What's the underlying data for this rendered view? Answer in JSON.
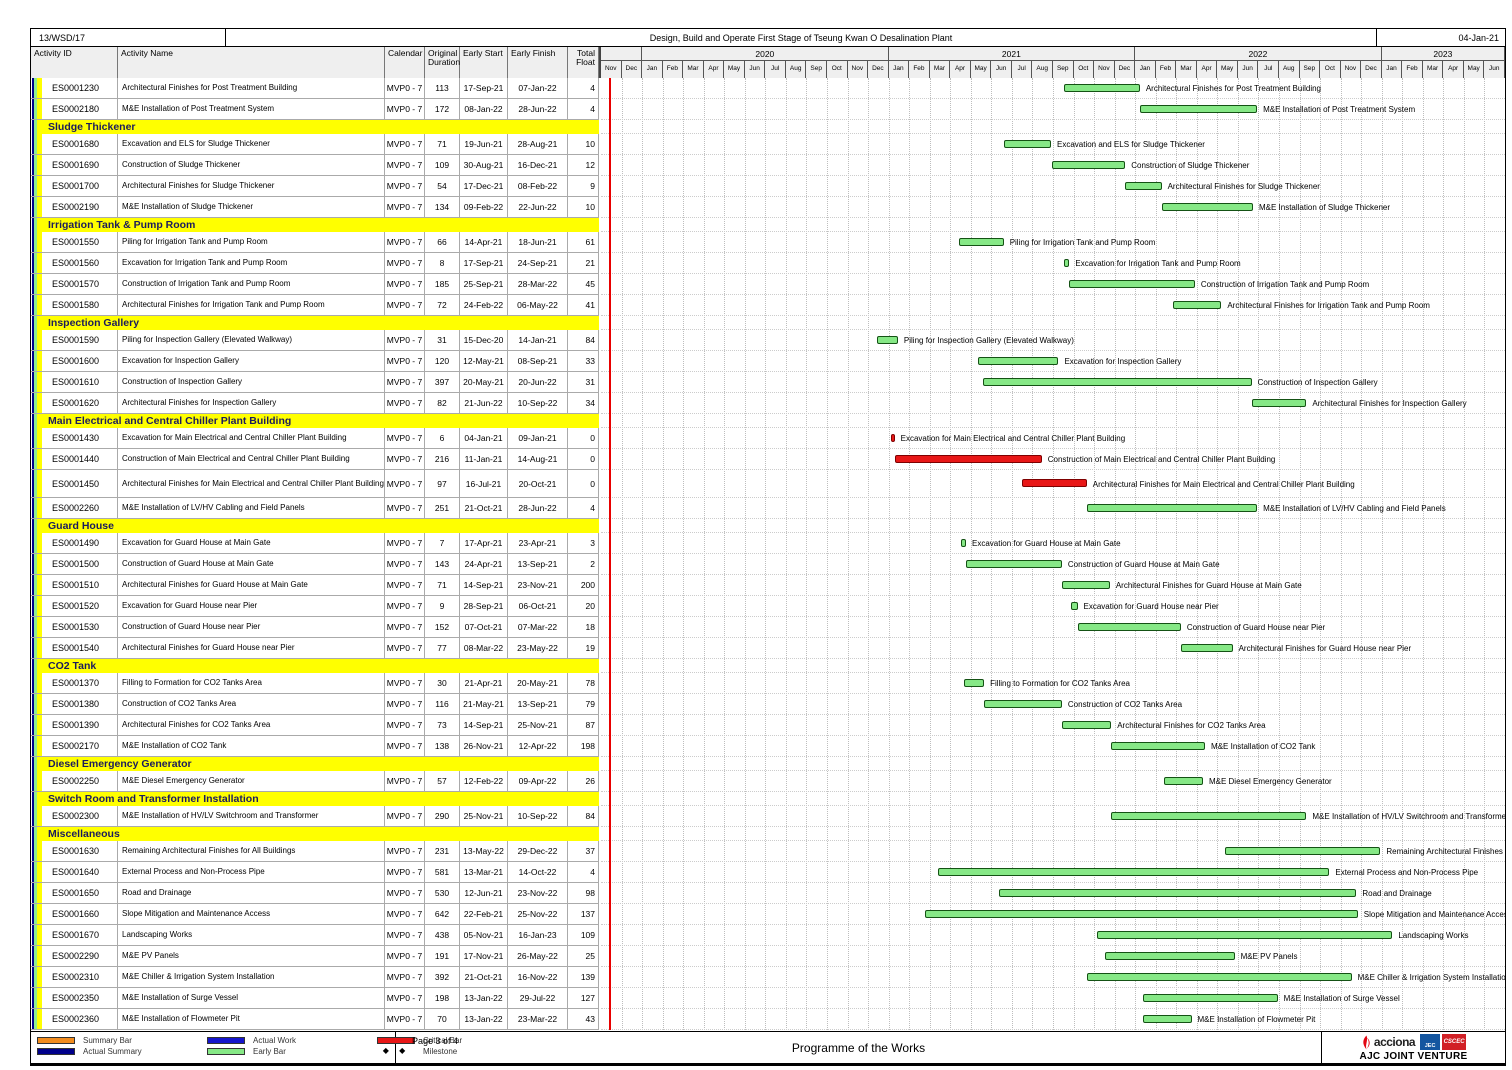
{
  "header": {
    "contract_no": "13/WSD/17",
    "title": "Design, Build and Operate First Stage of Tseung Kwan O Desalination Plant",
    "date": "04-Jan-21"
  },
  "columns": {
    "activity_id": "Activity ID",
    "activity_name": "Activity Name",
    "calendar": "Calendar",
    "original_duration": "Original Duration",
    "early_start": "Early Start",
    "early_finish": "Early Finish",
    "total_float": "Total Float"
  },
  "colors": {
    "early_fill": "#86E886",
    "early_border": "#145214",
    "critical_fill": "#E81717",
    "critical_border": "#7E0000",
    "data_date_line": "#E80000",
    "section_bg": "#FFFF00",
    "summary_bar": "#F28C1E",
    "actual_summary": "#00008B",
    "actual_work": "#1515CC"
  },
  "chart_data": {
    "type": "gantt",
    "timeline": {
      "first_month": "Nov",
      "first_year": 2019,
      "total_months": 44,
      "month_abbrs": [
        "Jan",
        "Feb",
        "Mar",
        "Apr",
        "May",
        "Jun",
        "Jul",
        "Aug",
        "Sep",
        "Oct",
        "Nov",
        "Dec"
      ],
      "year_bands": [
        {
          "label": "",
          "span": 2
        },
        {
          "label": "2020",
          "span": 12
        },
        {
          "label": "2021",
          "span": 12
        },
        {
          "label": "2022",
          "span": 12
        },
        {
          "label": "2023",
          "span": 6
        }
      ],
      "data_date_x_month": 0.4
    },
    "tasks": [
      {
        "type": "task",
        "id": "ES0001230",
        "name": "Architectural Finishes for Post Treatment Building",
        "calendar": "MVP0 - 7",
        "duration": "113",
        "start": "17-Sep-21",
        "finish": "07-Jan-22",
        "float": "4"
      },
      {
        "type": "task",
        "id": "ES0002180",
        "name": "M&E Installation of Post Treatment System",
        "calendar": "MVP0 - 7",
        "duration": "172",
        "start": "08-Jan-22",
        "finish": "28-Jun-22",
        "float": "4"
      },
      {
        "type": "section",
        "name": "Sludge Thickener"
      },
      {
        "type": "task",
        "id": "ES0001680",
        "name": "Excavation and ELS for Sludge Thickener",
        "calendar": "MVP0 - 7",
        "duration": "71",
        "start": "19-Jun-21",
        "finish": "28-Aug-21",
        "float": "10"
      },
      {
        "type": "task",
        "id": "ES0001690",
        "name": "Construction of Sludge Thickener",
        "calendar": "MVP0 - 7",
        "duration": "109",
        "start": "30-Aug-21",
        "finish": "16-Dec-21",
        "float": "12"
      },
      {
        "type": "task",
        "id": "ES0001700",
        "name": "Architectural Finishes for Sludge Thickener",
        "calendar": "MVP0 - 7",
        "duration": "54",
        "start": "17-Dec-21",
        "finish": "08-Feb-22",
        "float": "9"
      },
      {
        "type": "task",
        "id": "ES0002190",
        "name": "M&E Installation of Sludge Thickener",
        "calendar": "MVP0 - 7",
        "duration": "134",
        "start": "09-Feb-22",
        "finish": "22-Jun-22",
        "float": "10"
      },
      {
        "type": "section",
        "name": "Irrigation Tank & Pump Room"
      },
      {
        "type": "task",
        "id": "ES0001550",
        "name": "Piling for Irrigation Tank and Pump Room",
        "calendar": "MVP0 - 7",
        "duration": "66",
        "start": "14-Apr-21",
        "finish": "18-Jun-21",
        "float": "61"
      },
      {
        "type": "task",
        "id": "ES0001560",
        "name": "Excavation for Irrigation Tank and Pump Room",
        "calendar": "MVP0 - 7",
        "duration": "8",
        "start": "17-Sep-21",
        "finish": "24-Sep-21",
        "float": "21"
      },
      {
        "type": "task",
        "id": "ES0001570",
        "name": "Construction of Irrigation Tank and Pump Room",
        "calendar": "MVP0 - 7",
        "duration": "185",
        "start": "25-Sep-21",
        "finish": "28-Mar-22",
        "float": "45"
      },
      {
        "type": "task",
        "id": "ES0001580",
        "name": "Architectural Finishes for Irrigation Tank and Pump Room",
        "calendar": "MVP0 - 7",
        "duration": "72",
        "start": "24-Feb-22",
        "finish": "06-May-22",
        "float": "41"
      },
      {
        "type": "section",
        "name": "Inspection Gallery"
      },
      {
        "type": "task",
        "id": "ES0001590",
        "name": "Piling for Inspection Gallery (Elevated Walkway)",
        "calendar": "MVP0 - 7",
        "duration": "31",
        "start": "15-Dec-20",
        "finish": "14-Jan-21",
        "float": "84"
      },
      {
        "type": "task",
        "id": "ES0001600",
        "name": "Excavation for Inspection Gallery",
        "calendar": "MVP0 - 7",
        "duration": "120",
        "start": "12-May-21",
        "finish": "08-Sep-21",
        "float": "33"
      },
      {
        "type": "task",
        "id": "ES0001610",
        "name": "Construction of Inspection Gallery",
        "calendar": "MVP0 - 7",
        "duration": "397",
        "start": "20-May-21",
        "finish": "20-Jun-22",
        "float": "31"
      },
      {
        "type": "task",
        "id": "ES0001620",
        "name": "Architectural Finishes for Inspection Gallery",
        "calendar": "MVP0 - 7",
        "duration": "82",
        "start": "21-Jun-22",
        "finish": "10-Sep-22",
        "float": "34"
      },
      {
        "type": "section",
        "name": "Main Electrical and Central Chiller Plant Building"
      },
      {
        "type": "task",
        "id": "ES0001430",
        "name": "Excavation for Main Electrical and Central Chiller Plant Building",
        "calendar": "MVP0 - 7",
        "duration": "6",
        "start": "04-Jan-21",
        "finish": "09-Jan-21",
        "float": "0",
        "critical": true
      },
      {
        "type": "task",
        "id": "ES0001440",
        "name": "Construction of Main Electrical and Central Chiller Plant Building",
        "calendar": "MVP0 - 7",
        "duration": "216",
        "start": "11-Jan-21",
        "finish": "14-Aug-21",
        "float": "0",
        "critical": true
      },
      {
        "type": "task",
        "id": "ES0001450",
        "name": "Architectural Finishes for Main Electrical and Central Chiller Plant Building",
        "calendar": "MVP0 - 7",
        "duration": "97",
        "start": "16-Jul-21",
        "finish": "20-Oct-21",
        "float": "0",
        "critical": true,
        "tall": true
      },
      {
        "type": "task",
        "id": "ES0002260",
        "name": "M&E Installation of LV/HV Cabling and Field Panels",
        "calendar": "MVP0 - 7",
        "duration": "251",
        "start": "21-Oct-21",
        "finish": "28-Jun-22",
        "float": "4"
      },
      {
        "type": "section",
        "name": "Guard House"
      },
      {
        "type": "task",
        "id": "ES0001490",
        "name": "Excavation for Guard House at Main Gate",
        "calendar": "MVP0 - 7",
        "duration": "7",
        "start": "17-Apr-21",
        "finish": "23-Apr-21",
        "float": "3"
      },
      {
        "type": "task",
        "id": "ES0001500",
        "name": "Construction of Guard House at Main Gate",
        "calendar": "MVP0 - 7",
        "duration": "143",
        "start": "24-Apr-21",
        "finish": "13-Sep-21",
        "float": "2"
      },
      {
        "type": "task",
        "id": "ES0001510",
        "name": "Architectural Finishes for Guard House at Main Gate",
        "calendar": "MVP0 - 7",
        "duration": "71",
        "start": "14-Sep-21",
        "finish": "23-Nov-21",
        "float": "200"
      },
      {
        "type": "task",
        "id": "ES0001520",
        "name": "Excavation for Guard House near Pier",
        "calendar": "MVP0 - 7",
        "duration": "9",
        "start": "28-Sep-21",
        "finish": "06-Oct-21",
        "float": "20"
      },
      {
        "type": "task",
        "id": "ES0001530",
        "name": "Construction of Guard House near Pier",
        "calendar": "MVP0 - 7",
        "duration": "152",
        "start": "07-Oct-21",
        "finish": "07-Mar-22",
        "float": "18"
      },
      {
        "type": "task",
        "id": "ES0001540",
        "name": "Architectural Finishes for Guard House near Pier",
        "calendar": "MVP0 - 7",
        "duration": "77",
        "start": "08-Mar-22",
        "finish": "23-May-22",
        "float": "19"
      },
      {
        "type": "section",
        "name": "CO2 Tank"
      },
      {
        "type": "task",
        "id": "ES0001370",
        "name": "Filling to Formation for CO2 Tanks Area",
        "calendar": "MVP0 - 7",
        "duration": "30",
        "start": "21-Apr-21",
        "finish": "20-May-21",
        "float": "78"
      },
      {
        "type": "task",
        "id": "ES0001380",
        "name": "Construction of CO2 Tanks Area",
        "calendar": "MVP0 - 7",
        "duration": "116",
        "start": "21-May-21",
        "finish": "13-Sep-21",
        "float": "79"
      },
      {
        "type": "task",
        "id": "ES0001390",
        "name": "Architectural Finishes for CO2 Tanks Area",
        "calendar": "MVP0 - 7",
        "duration": "73",
        "start": "14-Sep-21",
        "finish": "25-Nov-21",
        "float": "87"
      },
      {
        "type": "task",
        "id": "ES0002170",
        "name": "M&E Installation of CO2 Tank",
        "calendar": "MVP0 - 7",
        "duration": "138",
        "start": "26-Nov-21",
        "finish": "12-Apr-22",
        "float": "198"
      },
      {
        "type": "section",
        "name": "Diesel Emergency Generator"
      },
      {
        "type": "task",
        "id": "ES0002250",
        "name": "M&E Diesel Emergency Generator",
        "calendar": "MVP0 - 7",
        "duration": "57",
        "start": "12-Feb-22",
        "finish": "09-Apr-22",
        "float": "26"
      },
      {
        "type": "section",
        "name": "Switch Room and Transformer Installation"
      },
      {
        "type": "task",
        "id": "ES0002300",
        "name": "M&E Installation of HV/LV Switchroom and Transformer",
        "calendar": "MVP0 - 7",
        "duration": "290",
        "start": "25-Nov-21",
        "finish": "10-Sep-22",
        "float": "84"
      },
      {
        "type": "section",
        "name": "Miscellaneous"
      },
      {
        "type": "task",
        "id": "ES0001630",
        "name": "Remaining Architectural Finishes for All Buildings",
        "calendar": "MVP0 - 7",
        "duration": "231",
        "start": "13-May-22",
        "finish": "29-Dec-22",
        "float": "37"
      },
      {
        "type": "task",
        "id": "ES0001640",
        "name": "External Process and Non-Process Pipe",
        "calendar": "MVP0 - 7",
        "duration": "581",
        "start": "13-Mar-21",
        "finish": "14-Oct-22",
        "float": "4"
      },
      {
        "type": "task",
        "id": "ES0001650",
        "name": "Road and Drainage",
        "calendar": "MVP0 - 7",
        "duration": "530",
        "start": "12-Jun-21",
        "finish": "23-Nov-22",
        "float": "98"
      },
      {
        "type": "task",
        "id": "ES0001660",
        "name": "Slope Mitigation and Maintenance Access",
        "calendar": "MVP0 - 7",
        "duration": "642",
        "start": "22-Feb-21",
        "finish": "25-Nov-22",
        "float": "137"
      },
      {
        "type": "task",
        "id": "ES0001670",
        "name": "Landscaping Works",
        "calendar": "MVP0 - 7",
        "duration": "438",
        "start": "05-Nov-21",
        "finish": "16-Jan-23",
        "float": "109"
      },
      {
        "type": "task",
        "id": "ES0002290",
        "name": "M&E PV Panels",
        "calendar": "MVP0 - 7",
        "duration": "191",
        "start": "17-Nov-21",
        "finish": "26-May-22",
        "float": "25"
      },
      {
        "type": "task",
        "id": "ES0002310",
        "name": "M&E Chiller & Irrigation System Installation",
        "calendar": "MVP0 - 7",
        "duration": "392",
        "start": "21-Oct-21",
        "finish": "16-Nov-22",
        "float": "139"
      },
      {
        "type": "task",
        "id": "ES0002350",
        "name": "M&E Installation of Surge Vessel",
        "calendar": "MVP0 - 7",
        "duration": "198",
        "start": "13-Jan-22",
        "finish": "29-Jul-22",
        "float": "127"
      },
      {
        "type": "task",
        "id": "ES0002360",
        "name": "M&E Installation of Flowmeter Pit",
        "calendar": "MVP0 - 7",
        "duration": "70",
        "start": "13-Jan-22",
        "finish": "23-Mar-22",
        "float": "43"
      }
    ]
  },
  "legend": [
    {
      "label": "Summary Bar",
      "swatch": "#F28C1E",
      "kind": "bar"
    },
    {
      "label": "Actual Summary",
      "swatch": "#00008B",
      "kind": "bar"
    },
    {
      "label": "Actual Work",
      "swatch": "#1515CC",
      "kind": "bar"
    },
    {
      "label": "Early Bar",
      "swatch": "#86E886",
      "kind": "bar"
    },
    {
      "label": "Critical Bar",
      "swatch": "#E81717",
      "kind": "bar"
    },
    {
      "label": "Milestone",
      "swatch": "",
      "kind": "milestone",
      "glyph": "◆ ◆"
    }
  ],
  "footer": {
    "page": "Page 3 of 4",
    "title": "Programme of the Works",
    "logos": {
      "acciona": "acciona",
      "jec": "JEC",
      "cscec": "CSCEC",
      "venture": "AJC JOINT VENTURE"
    }
  }
}
